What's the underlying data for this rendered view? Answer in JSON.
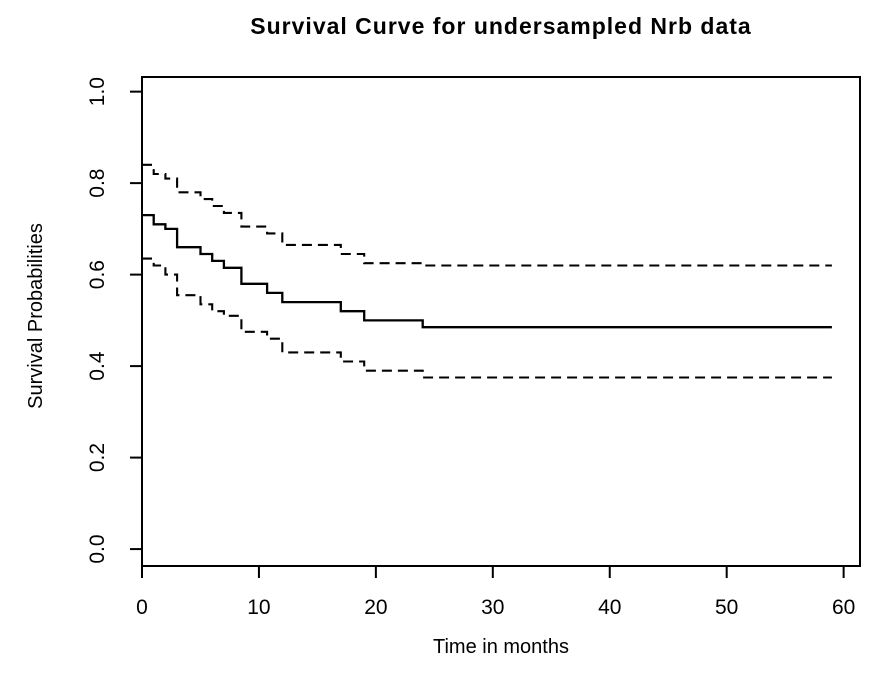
{
  "window": {
    "background": "#ffffff"
  },
  "chart_data": {
    "type": "line",
    "subtype": "kaplan-meier-step-survival",
    "title": "Survival Curve for undersampled Nrb data",
    "xlabel": "Time in months",
    "ylabel": "Survival Probabilities",
    "xlim": [
      0,
      61.4
    ],
    "ylim": [
      -0.037,
      1.032
    ],
    "x_ticks": [
      0,
      10,
      20,
      30,
      40,
      50,
      60
    ],
    "x_tick_labels": [
      "0",
      "10",
      "20",
      "30",
      "40",
      "50",
      "60"
    ],
    "y_ticks": [
      0.0,
      0.2,
      0.4,
      0.6,
      0.8,
      1.0
    ],
    "y_tick_labels": [
      "0.0",
      "0.2",
      "0.4",
      "0.6",
      "0.8",
      "1.0"
    ],
    "grid": false,
    "legend": null,
    "frame_box": true,
    "colors": {
      "line": "#000000",
      "text": "#000000",
      "background": "#ffffff"
    },
    "series": [
      {
        "name": "survival-estimate",
        "line_style": "solid",
        "step_x": [
          0,
          1,
          2,
          3,
          5,
          6,
          7,
          8.5,
          10.7,
          12,
          17,
          19,
          24,
          59
        ],
        "step_y": [
          0.73,
          0.71,
          0.7,
          0.66,
          0.645,
          0.63,
          0.615,
          0.58,
          0.56,
          0.54,
          0.52,
          0.5,
          0.485,
          0.485
        ]
      },
      {
        "name": "upper-95pct-confidence-bound",
        "line_style": "dashed",
        "step_x": [
          0,
          1,
          2,
          3,
          5,
          6,
          7,
          8.5,
          10.7,
          12,
          17,
          19,
          24,
          59
        ],
        "step_y": [
          0.84,
          0.82,
          0.81,
          0.78,
          0.765,
          0.75,
          0.735,
          0.705,
          0.69,
          0.665,
          0.645,
          0.625,
          0.62,
          0.62
        ]
      },
      {
        "name": "lower-95pct-confidence-bound",
        "line_style": "dashed",
        "step_x": [
          0,
          1,
          2,
          3,
          5,
          6,
          7,
          8.5,
          10.7,
          12,
          17,
          19,
          24,
          59
        ],
        "step_y": [
          0.635,
          0.62,
          0.6,
          0.555,
          0.535,
          0.52,
          0.51,
          0.475,
          0.46,
          0.43,
          0.41,
          0.39,
          0.375,
          0.375
        ]
      }
    ]
  }
}
